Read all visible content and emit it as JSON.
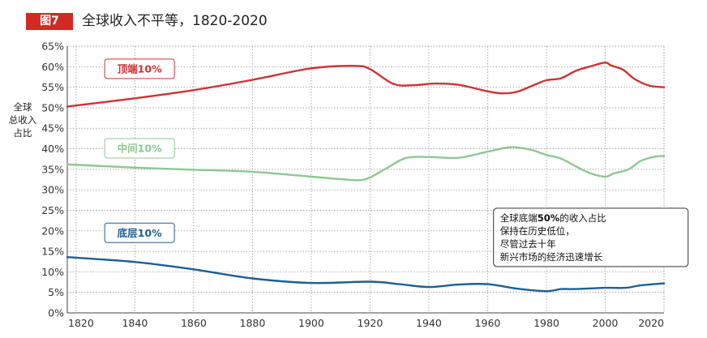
{
  "figure": {
    "badge": "图7",
    "title": "全球收入不平等，1820-2020"
  },
  "chart_data": {
    "type": "line",
    "title": "全球收入不平等，1820-2020",
    "ylabel": [
      "全球",
      "总收入",
      "占比"
    ],
    "xlabel": "",
    "xlim": [
      1817,
      2020
    ],
    "ylim": [
      0,
      65
    ],
    "x_ticks": [
      1820,
      1840,
      1860,
      1880,
      1900,
      1920,
      1940,
      1960,
      1980,
      2000,
      2020
    ],
    "y_ticks": [
      0,
      5,
      10,
      15,
      20,
      25,
      30,
      35,
      40,
      45,
      50,
      55,
      60,
      65
    ],
    "y_tick_suffix": "%",
    "grid": true,
    "series": [
      {
        "name": "顶端10%",
        "color": "#d23134",
        "label_at": [
          1830,
          59.5
        ],
        "points": [
          [
            1817,
            50.3
          ],
          [
            1840,
            52.3
          ],
          [
            1860,
            54.3
          ],
          [
            1880,
            56.8
          ],
          [
            1900,
            59.6
          ],
          [
            1915,
            60.2
          ],
          [
            1920,
            59.4
          ],
          [
            1928,
            55.8
          ],
          [
            1935,
            55.5
          ],
          [
            1942,
            55.9
          ],
          [
            1950,
            55.6
          ],
          [
            1960,
            54.0
          ],
          [
            1965,
            53.5
          ],
          [
            1970,
            53.9
          ],
          [
            1975,
            55.3
          ],
          [
            1980,
            56.7
          ],
          [
            1985,
            57.2
          ],
          [
            1990,
            59.0
          ],
          [
            1995,
            60.1
          ],
          [
            2000,
            61.0
          ],
          [
            2002,
            60.3
          ],
          [
            2006,
            59.3
          ],
          [
            2010,
            57.0
          ],
          [
            2015,
            55.4
          ],
          [
            2020,
            55.0
          ]
        ]
      },
      {
        "name": "中间10%",
        "color": "#8dc891",
        "label_at": [
          1830,
          40.1
        ],
        "points": [
          [
            1817,
            36.2
          ],
          [
            1840,
            35.4
          ],
          [
            1860,
            34.9
          ],
          [
            1880,
            34.4
          ],
          [
            1900,
            33.2
          ],
          [
            1910,
            32.6
          ],
          [
            1918,
            32.5
          ],
          [
            1925,
            35.0
          ],
          [
            1932,
            37.7
          ],
          [
            1940,
            38.0
          ],
          [
            1950,
            37.8
          ],
          [
            1960,
            39.3
          ],
          [
            1968,
            40.4
          ],
          [
            1975,
            39.7
          ],
          [
            1980,
            38.5
          ],
          [
            1985,
            37.6
          ],
          [
            1990,
            35.7
          ],
          [
            1995,
            34.0
          ],
          [
            2000,
            33.2
          ],
          [
            2003,
            34.0
          ],
          [
            2008,
            35.0
          ],
          [
            2012,
            37.0
          ],
          [
            2017,
            38.1
          ],
          [
            2020,
            38.2
          ]
        ]
      },
      {
        "name": "底层10%",
        "color": "#1e5f94",
        "label_at": [
          1830,
          19.5
        ],
        "points": [
          [
            1817,
            13.6
          ],
          [
            1840,
            12.4
          ],
          [
            1860,
            10.6
          ],
          [
            1880,
            8.4
          ],
          [
            1900,
            7.3
          ],
          [
            1920,
            7.6
          ],
          [
            1930,
            7.0
          ],
          [
            1940,
            6.3
          ],
          [
            1950,
            6.9
          ],
          [
            1960,
            7.0
          ],
          [
            1970,
            5.9
          ],
          [
            1980,
            5.3
          ],
          [
            1985,
            5.8
          ],
          [
            1990,
            5.8
          ],
          [
            2000,
            6.1
          ],
          [
            2007,
            6.1
          ],
          [
            2012,
            6.7
          ],
          [
            2020,
            7.2
          ]
        ]
      }
    ],
    "annotation": {
      "lines": [
        [
          "全球底端",
          "50%",
          "的收入占比"
        ],
        [
          "保持在历史低位，"
        ],
        [
          "尽管过去十年"
        ],
        [
          "新兴市场的经济迅速增长"
        ]
      ],
      "anchor": [
        1962,
        25.5
      ]
    }
  }
}
